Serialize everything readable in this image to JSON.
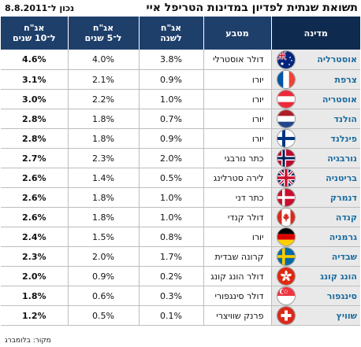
{
  "header": {
    "title": "תשואת שנתית לפדיון במדינות הטריפל איי",
    "as_of": "נכון ל־8.8.2011"
  },
  "table": {
    "columns": [
      "מדינה",
      "מטבע",
      "אג\"ח\nלשנה",
      "אג\"ח\nל־5 שנים",
      "אג\"ח\nל־10 שנים"
    ],
    "rows": [
      {
        "country": "אוסטרליה",
        "flag": "australia-flag",
        "currency": "דולר אוסטרלי",
        "y1": "3.8%",
        "y5": "4.0%",
        "y10": "4.6%"
      },
      {
        "country": "צרפת",
        "flag": "france-flag",
        "currency": "יורו",
        "y1": "0.9%",
        "y5": "2.1%",
        "y10": "3.1%"
      },
      {
        "country": "אוסטריה",
        "flag": "austria-flag",
        "currency": "יורו",
        "y1": "1.0%",
        "y5": "2.2%",
        "y10": "3.0%"
      },
      {
        "country": "הולנד",
        "flag": "netherlands-flag",
        "currency": "יורו",
        "y1": "0.7%",
        "y5": "1.8%",
        "y10": "2.8%"
      },
      {
        "country": "פינלנד",
        "flag": "finland-flag",
        "currency": "יורו",
        "y1": "0.9%",
        "y5": "1.8%",
        "y10": "2.8%"
      },
      {
        "country": "נורבגיה",
        "flag": "norway-flag",
        "currency": "כתר נורבגי",
        "y1": "2.0%",
        "y5": "2.3%",
        "y10": "2.7%"
      },
      {
        "country": "בריטניה",
        "flag": "uk-flag",
        "currency": "לירה סטרלינג",
        "y1": "0.5%",
        "y5": "1.4%",
        "y10": "2.6%"
      },
      {
        "country": "דנמרק",
        "flag": "denmark-flag",
        "currency": "כתר דני",
        "y1": "1.0%",
        "y5": "1.8%",
        "y10": "2.6%"
      },
      {
        "country": "קנדה",
        "flag": "canada-flag",
        "currency": "דולר קנדי",
        "y1": "1.0%",
        "y5": "1.8%",
        "y10": "2.6%"
      },
      {
        "country": "גרמניה",
        "flag": "germany-flag",
        "currency": "יורו",
        "y1": "0.8%",
        "y5": "1.5%",
        "y10": "2.4%"
      },
      {
        "country": "שבדיה",
        "flag": "sweden-flag",
        "currency": "קרונה שבדית",
        "y1": "1.7%",
        "y5": "2.0%",
        "y10": "2.3%"
      },
      {
        "country": "הונג קונג",
        "flag": "hong-kong-flag",
        "currency": "דולר הונג קונג",
        "y1": "0.2%",
        "y5": "0.9%",
        "y10": "2.0%"
      },
      {
        "country": "סינגפור",
        "flag": "singapore-flag",
        "currency": "דולר סינגפורי",
        "y1": "0.3%",
        "y5": "0.6%",
        "y10": "1.8%"
      },
      {
        "country": "שוויץ",
        "flag": "switzerland-flag",
        "currency": "פרנק שוויצרי",
        "y1": "0.1%",
        "y5": "0.5%",
        "y10": "1.2%"
      }
    ]
  },
  "footer": {
    "source": "מקור: בלומברג"
  },
  "colors": {
    "header_bg": "#1f3f6b",
    "country_header_bg": "#0f2a4f",
    "country_text": "#1c6c9f",
    "country_cell_bg": "#e9e9e9",
    "row_divider": "#bdbdbd"
  }
}
